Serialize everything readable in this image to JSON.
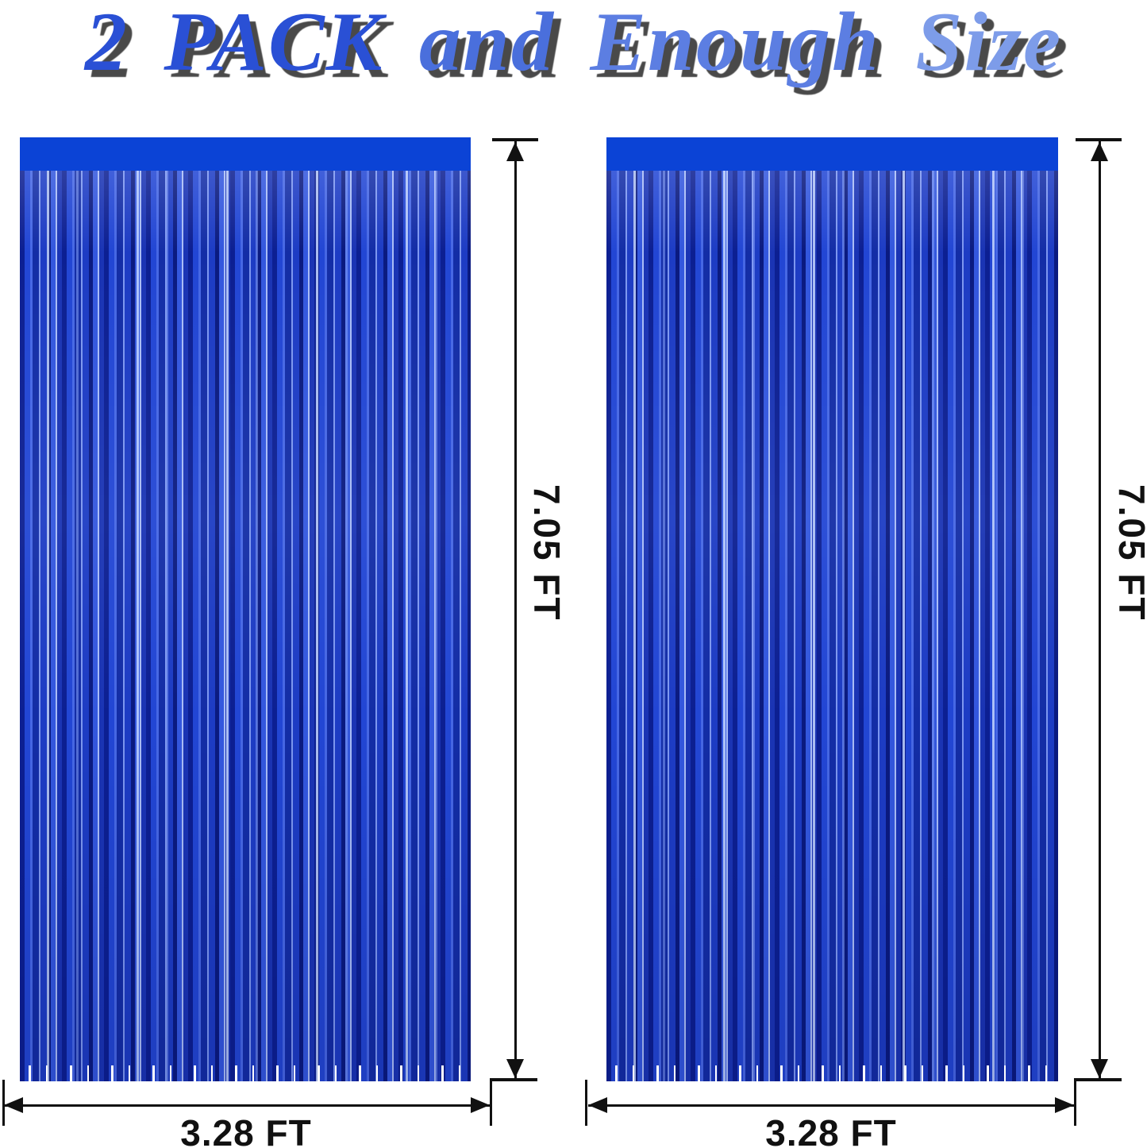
{
  "title": {
    "segments": [
      {
        "text": "2 PACK",
        "color": "#2a50d5"
      },
      {
        "text": "and",
        "color": "#4a6fdc"
      },
      {
        "text": "Enough",
        "color": "#5c7ee2"
      },
      {
        "text": "Size",
        "color": "#7d9ce9"
      }
    ],
    "shadow_color": "#303030"
  },
  "colors": {
    "curtain_header": "#0b43d6",
    "fringe_dark": "#0c1f92",
    "fringe_mid": "#2246d4",
    "fringe_light": "#7d97f0",
    "fringe_highlight": "#c4d6ff",
    "dimension_line": "#111111",
    "background": "#ffffff"
  },
  "panels": [
    {
      "height_label": "7.05 FT",
      "width_label": "3.28 FT"
    },
    {
      "height_label": "7.05 FT",
      "width_label": "3.28 FT"
    }
  ]
}
